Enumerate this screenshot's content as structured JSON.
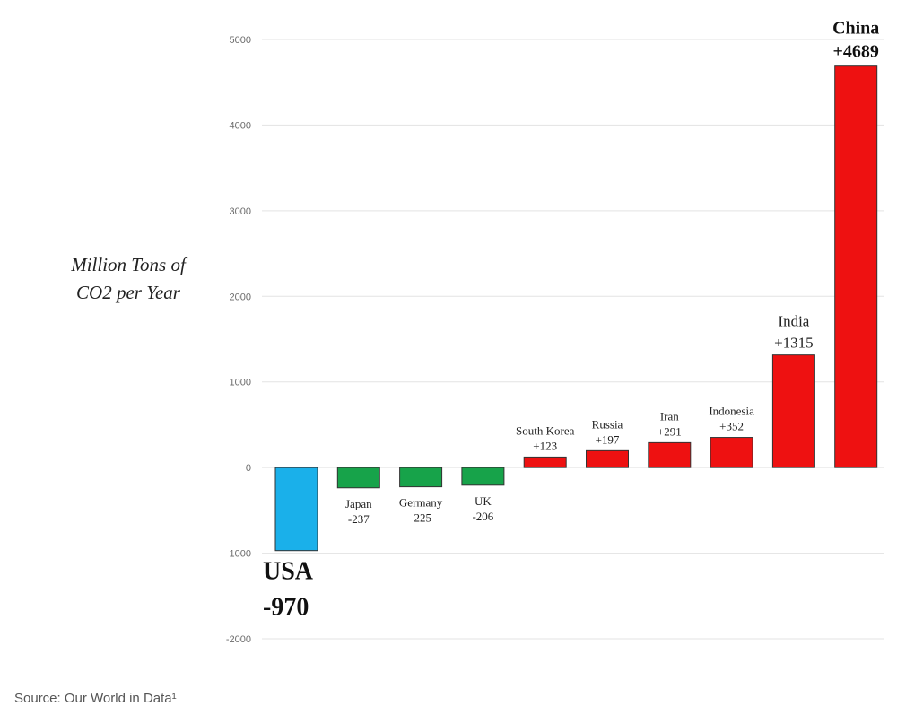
{
  "chart_data": {
    "type": "bar",
    "ylabel_lines": [
      "Million Tons of",
      "CO2 per Year"
    ],
    "categories": [
      "USA",
      "Japan",
      "Germany",
      "UK",
      "South Korea",
      "Russia",
      "Iran",
      "Indonesia",
      "India",
      "China"
    ],
    "values": [
      -970,
      -237,
      -225,
      -206,
      123,
      197,
      291,
      352,
      1315,
      4689
    ],
    "value_labels": [
      "-970",
      "-237",
      "-225",
      "-206",
      "+123",
      "+197",
      "+291",
      "+352",
      "+1315",
      "+4689"
    ],
    "bar_colors": [
      "#1ab0ea",
      "#17a34a",
      "#17a34a",
      "#17a34a",
      "#ee1111",
      "#ee1111",
      "#ee1111",
      "#ee1111",
      "#ee1111",
      "#ee1111"
    ],
    "yticks": [
      5000,
      4000,
      3000,
      2000,
      1000,
      0,
      -1000,
      -2000
    ],
    "ytick_labels": [
      "5000",
      "4000",
      "3000",
      "2000",
      "1000",
      "0",
      "-1000",
      "-2000"
    ],
    "ylim": [
      -2000,
      5000
    ],
    "grid": true,
    "legend": "none"
  },
  "source": "Source: Our World in Data¹"
}
